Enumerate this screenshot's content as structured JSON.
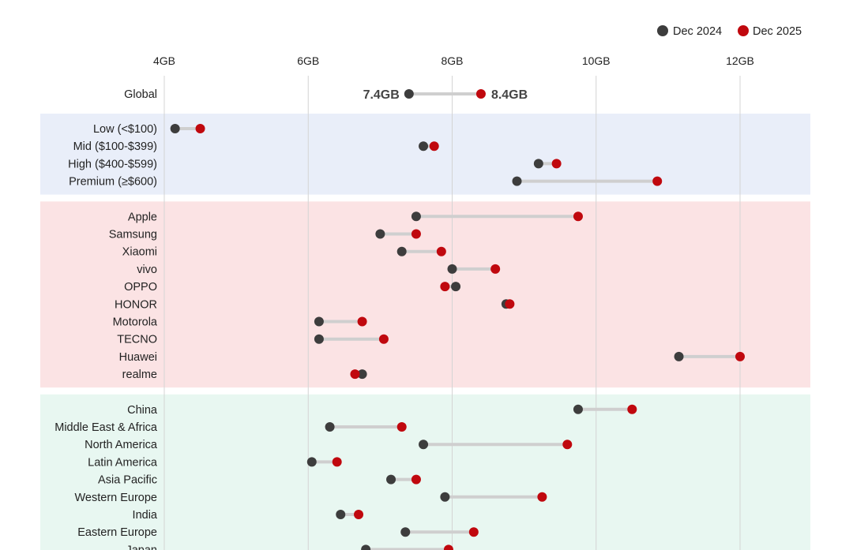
{
  "chart_data": {
    "type": "dumbbell",
    "title": "",
    "xlabel": "",
    "ylabel": "",
    "unit": "GB",
    "xlim": [
      4,
      12
    ],
    "x_ticks": [
      {
        "value": 4,
        "label": "4GB"
      },
      {
        "value": 6,
        "label": "6GB"
      },
      {
        "value": 8,
        "label": "8GB"
      },
      {
        "value": 10,
        "label": "10GB"
      },
      {
        "value": 12,
        "label": "12GB"
      }
    ],
    "grid": "vertical",
    "legend": {
      "position": "top-right",
      "entries": [
        {
          "name": "Dec 2024",
          "color": "#3d3d3d"
        },
        {
          "name": "Dec 2025",
          "color": "#c0080e"
        }
      ]
    },
    "callouts": {
      "dec2024": "7.4GB",
      "dec2025": "8.4GB"
    },
    "groups": [
      {
        "name": "overall",
        "background": "none",
        "rows": [
          {
            "label": "Global",
            "dec2024": 7.4,
            "dec2025": 8.4
          }
        ]
      },
      {
        "name": "price-band",
        "background": "#e9eef9",
        "rows": [
          {
            "label": "Low (<$100)",
            "dec2024": 4.15,
            "dec2025": 4.5
          },
          {
            "label": "Mid ($100-$399)",
            "dec2024": 7.6,
            "dec2025": 7.75
          },
          {
            "label": "High ($400-$599)",
            "dec2024": 9.2,
            "dec2025": 9.45
          },
          {
            "label": "Premium (≥$600)",
            "dec2024": 8.9,
            "dec2025": 10.85
          }
        ]
      },
      {
        "name": "brand",
        "background": "#fbe3e4",
        "rows": [
          {
            "label": "Apple",
            "dec2024": 7.5,
            "dec2025": 9.75
          },
          {
            "label": "Samsung",
            "dec2024": 7.0,
            "dec2025": 7.5
          },
          {
            "label": "Xiaomi",
            "dec2024": 7.3,
            "dec2025": 7.85
          },
          {
            "label": "vivo",
            "dec2024": 8.0,
            "dec2025": 8.6
          },
          {
            "label": "OPPO",
            "dec2024": 8.05,
            "dec2025": 7.9
          },
          {
            "label": "HONOR",
            "dec2024": 8.75,
            "dec2025": 8.8
          },
          {
            "label": "Motorola",
            "dec2024": 6.15,
            "dec2025": 6.75
          },
          {
            "label": "TECNO",
            "dec2024": 6.15,
            "dec2025": 7.05
          },
          {
            "label": "Huawei",
            "dec2024": 11.15,
            "dec2025": 12.0
          },
          {
            "label": "realme",
            "dec2024": 6.75,
            "dec2025": 6.65
          }
        ]
      },
      {
        "name": "region",
        "background": "#e8f7f1",
        "rows": [
          {
            "label": "China",
            "dec2024": 9.75,
            "dec2025": 10.5
          },
          {
            "label": "Middle East & Africa",
            "dec2024": 6.3,
            "dec2025": 7.3
          },
          {
            "label": "North America",
            "dec2024": 7.6,
            "dec2025": 9.6
          },
          {
            "label": "Latin America",
            "dec2024": 6.05,
            "dec2025": 6.4
          },
          {
            "label": "Asia Pacific",
            "dec2024": 7.15,
            "dec2025": 7.5
          },
          {
            "label": "Western Europe",
            "dec2024": 7.9,
            "dec2025": 9.25
          },
          {
            "label": "India",
            "dec2024": 6.45,
            "dec2025": 6.7
          },
          {
            "label": "Eastern Europe",
            "dec2024": 7.35,
            "dec2025": 8.3
          },
          {
            "label": "Japan",
            "dec2024": 6.8,
            "dec2025": 7.95
          }
        ]
      }
    ]
  }
}
